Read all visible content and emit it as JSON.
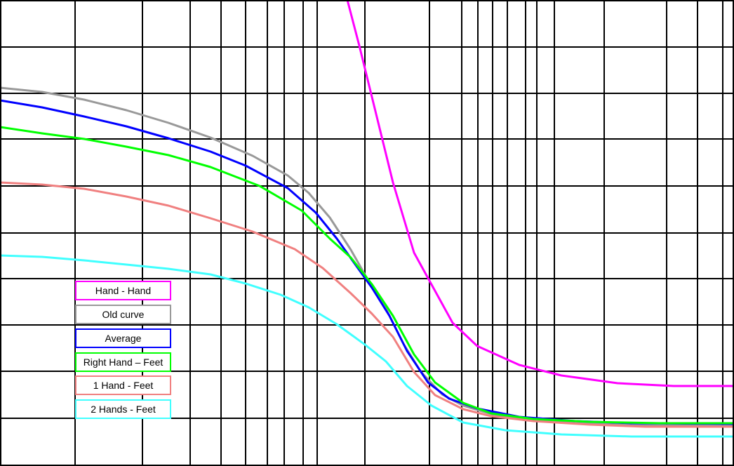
{
  "chart_data": {
    "type": "line",
    "title": "",
    "xlabel": "",
    "ylabel": "",
    "x_scale": "log",
    "grid": true,
    "legend_placement": "lower-left",
    "series": [
      {
        "name": "Hand - Hand",
        "color": "#ff00ff",
        "points": [
          [
            495,
            0
          ],
          [
            512,
            65
          ],
          [
            560,
            260
          ],
          [
            590,
            360
          ],
          [
            645,
            460
          ],
          [
            680,
            493
          ],
          [
            740,
            520
          ],
          [
            800,
            535
          ],
          [
            880,
            546
          ],
          [
            960,
            550
          ],
          [
            1046,
            550
          ]
        ]
      },
      {
        "name": "Old curve",
        "color": "#999999",
        "points": [
          [
            0,
            125
          ],
          [
            60,
            131
          ],
          [
            120,
            142
          ],
          [
            180,
            157
          ],
          [
            240,
            175
          ],
          [
            300,
            196
          ],
          [
            360,
            222
          ],
          [
            410,
            250
          ],
          [
            440,
            275
          ],
          [
            470,
            310
          ],
          [
            500,
            356
          ],
          [
            525,
            400
          ],
          [
            550,
            440
          ],
          [
            575,
            490
          ],
          [
            600,
            530
          ],
          [
            630,
            562
          ],
          [
            660,
            578
          ],
          [
            700,
            590
          ],
          [
            760,
            599
          ],
          [
            820,
            603
          ],
          [
            900,
            606
          ],
          [
            1046,
            607
          ]
        ]
      },
      {
        "name": "Average",
        "color": "#0000ff",
        "points": [
          [
            0,
            143
          ],
          [
            60,
            153
          ],
          [
            120,
            166
          ],
          [
            180,
            180
          ],
          [
            240,
            197
          ],
          [
            300,
            216
          ],
          [
            350,
            236
          ],
          [
            410,
            268
          ],
          [
            450,
            303
          ],
          [
            480,
            340
          ],
          [
            505,
            375
          ],
          [
            530,
            410
          ],
          [
            555,
            450
          ],
          [
            580,
            500
          ],
          [
            610,
            545
          ],
          [
            640,
            568
          ],
          [
            680,
            582
          ],
          [
            740,
            594
          ],
          [
            820,
            600
          ],
          [
            900,
            603
          ],
          [
            1046,
            604
          ]
        ]
      },
      {
        "name": "Right Hand – Feet",
        "color": "#00ff00",
        "points": [
          [
            0,
            181
          ],
          [
            60,
            190
          ],
          [
            120,
            198
          ],
          [
            180,
            209
          ],
          [
            240,
            221
          ],
          [
            300,
            238
          ],
          [
            370,
            265
          ],
          [
            430,
            300
          ],
          [
            470,
            340
          ],
          [
            500,
            367
          ],
          [
            530,
            405
          ],
          [
            560,
            450
          ],
          [
            590,
            505
          ],
          [
            620,
            545
          ],
          [
            660,
            574
          ],
          [
            700,
            589
          ],
          [
            760,
            597
          ],
          [
            840,
            601
          ],
          [
            940,
            603
          ],
          [
            1046,
            603
          ]
        ]
      },
      {
        "name": "1 Hand - Feet",
        "color": "#f08080",
        "points": [
          [
            0,
            260
          ],
          [
            60,
            263
          ],
          [
            120,
            269
          ],
          [
            180,
            280
          ],
          [
            240,
            293
          ],
          [
            300,
            311
          ],
          [
            360,
            330
          ],
          [
            420,
            355
          ],
          [
            460,
            382
          ],
          [
            500,
            418
          ],
          [
            530,
            447
          ],
          [
            560,
            480
          ],
          [
            590,
            530
          ],
          [
            620,
            563
          ],
          [
            660,
            583
          ],
          [
            700,
            593
          ],
          [
            760,
            600
          ],
          [
            840,
            605
          ],
          [
            920,
            608
          ],
          [
            1046,
            608
          ]
        ]
      },
      {
        "name": "2 Hands - Feet",
        "color": "#40ffff",
        "points": [
          [
            0,
            364
          ],
          [
            60,
            366
          ],
          [
            120,
            371
          ],
          [
            180,
            377
          ],
          [
            240,
            383
          ],
          [
            300,
            391
          ],
          [
            350,
            404
          ],
          [
            400,
            420
          ],
          [
            440,
            438
          ],
          [
            480,
            462
          ],
          [
            520,
            491
          ],
          [
            550,
            515
          ],
          [
            580,
            550
          ],
          [
            615,
            578
          ],
          [
            660,
            602
          ],
          [
            720,
            613
          ],
          [
            800,
            619
          ],
          [
            900,
            622
          ],
          [
            1046,
            622
          ]
        ]
      }
    ]
  }
}
